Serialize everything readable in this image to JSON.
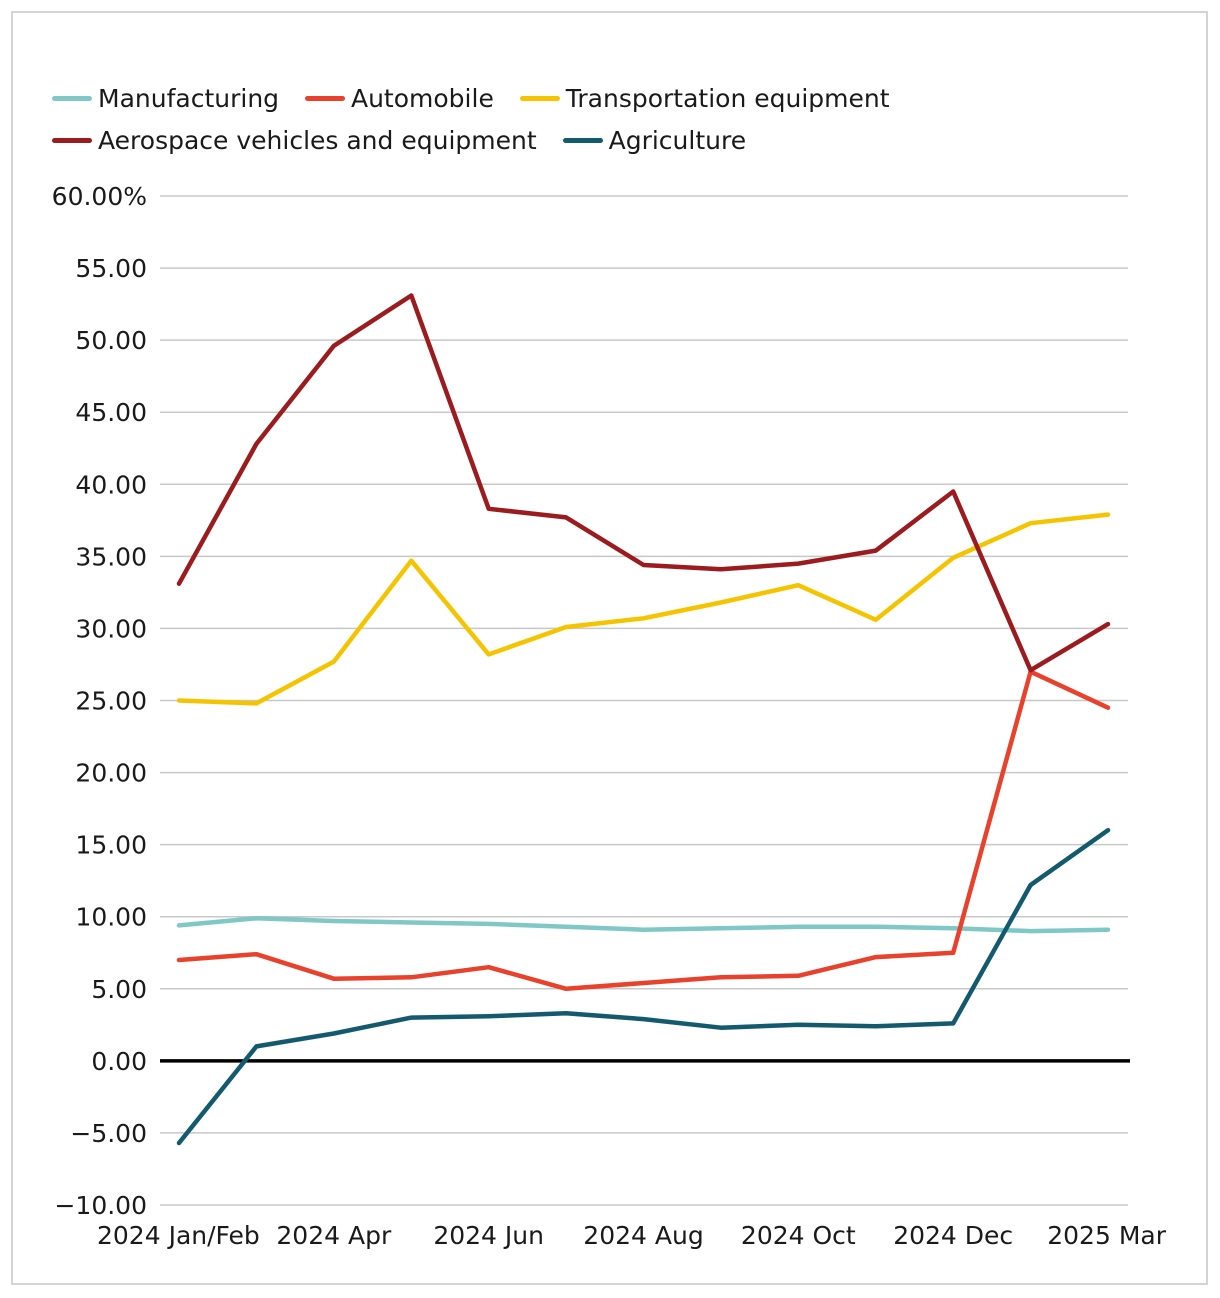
{
  "chart_data": {
    "type": "line",
    "title": "",
    "xlabel": "",
    "ylabel": "",
    "ylim": [
      -10,
      60
    ],
    "y_ticks": [
      {
        "value": 60,
        "label": "60.00%"
      },
      {
        "value": 55,
        "label": "55.00"
      },
      {
        "value": 50,
        "label": "50.00"
      },
      {
        "value": 45,
        "label": "45.00"
      },
      {
        "value": 40,
        "label": "40.00"
      },
      {
        "value": 35,
        "label": "35.00"
      },
      {
        "value": 30,
        "label": "30.00"
      },
      {
        "value": 25,
        "label": "25.00"
      },
      {
        "value": 20,
        "label": "20.00"
      },
      {
        "value": 15,
        "label": "15.00"
      },
      {
        "value": 10,
        "label": "10.00"
      },
      {
        "value": 5,
        "label": "5.00"
      },
      {
        "value": 0,
        "label": "0.00"
      },
      {
        "value": -5,
        "label": "−5.00"
      },
      {
        "value": -10,
        "label": "−10.00"
      }
    ],
    "x_count": 13,
    "x_ticks": [
      {
        "index": 0,
        "label": "2024 Jan/Feb"
      },
      {
        "index": 2,
        "label": "2024 Apr"
      },
      {
        "index": 4,
        "label": "2024 Jun"
      },
      {
        "index": 6,
        "label": "2024 Aug"
      },
      {
        "index": 8,
        "label": "2024 Oct"
      },
      {
        "index": 10,
        "label": "2024 Dec"
      },
      {
        "index": 12,
        "label": "2025 Mar"
      }
    ],
    "series": [
      {
        "name": "Manufacturing",
        "color": "#7fc8c6",
        "values": [
          9.4,
          9.9,
          9.7,
          9.6,
          9.5,
          9.3,
          9.1,
          9.2,
          9.3,
          9.3,
          9.2,
          9.0,
          9.1
        ]
      },
      {
        "name": "Automobile",
        "color": "#e8412c",
        "values": [
          7.0,
          7.4,
          5.7,
          5.8,
          6.5,
          5.0,
          5.4,
          5.8,
          5.9,
          7.2,
          7.5,
          27.0,
          24.5
        ]
      },
      {
        "name": "Transportation equipment",
        "color": "#f5c400",
        "values": [
          25.0,
          24.8,
          27.7,
          34.7,
          28.2,
          30.1,
          30.7,
          31.8,
          33.0,
          30.6,
          34.9,
          37.3,
          37.9
        ]
      },
      {
        "name": "Aerospace vehicles and equipment",
        "color": "#9b1b1e",
        "values": [
          33.1,
          42.8,
          49.6,
          53.1,
          38.3,
          37.7,
          34.4,
          34.1,
          34.5,
          35.4,
          39.5,
          27.1,
          30.3
        ]
      },
      {
        "name": "Agriculture",
        "color": "#135a6e",
        "values": [
          -5.7,
          1.0,
          1.9,
          3.0,
          3.1,
          3.3,
          2.9,
          2.3,
          2.5,
          2.4,
          2.6,
          12.2,
          16.0
        ]
      }
    ]
  }
}
